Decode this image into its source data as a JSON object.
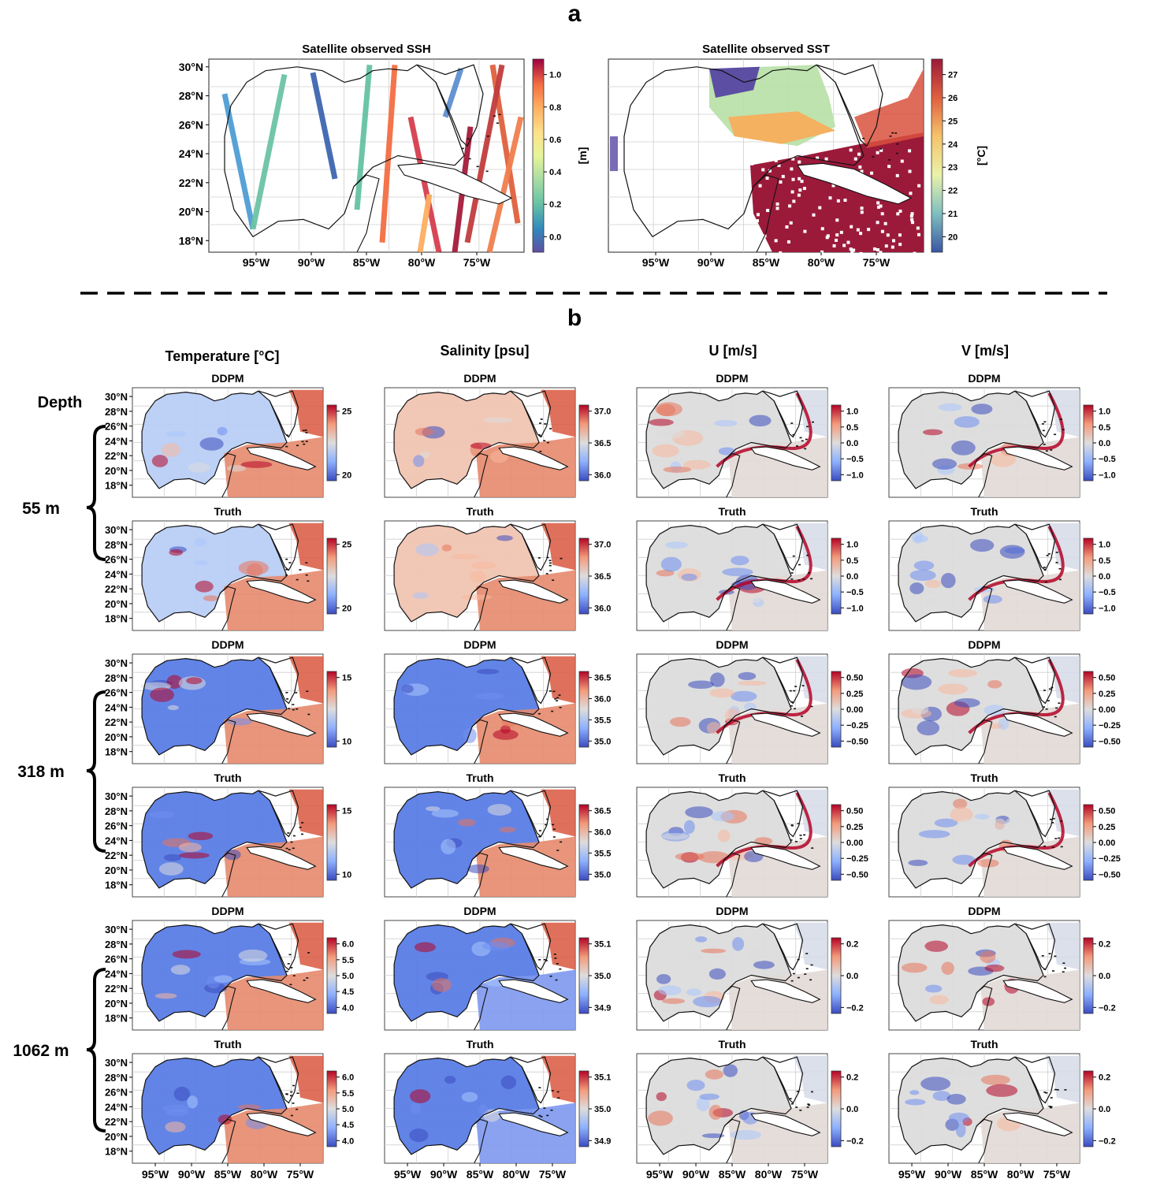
{
  "figure": {
    "label_a": "a",
    "label_b": "b"
  },
  "colors": {
    "ocean_fill": "#d6dbe2",
    "coast": "#111111",
    "grid": "#cfcfcf",
    "coolwarm": [
      "#3b4cc0",
      "#8db0fe",
      "#dddddd",
      "#f49a7b",
      "#b40426"
    ],
    "spectral": [
      "#5e4fa2",
      "#3288bd",
      "#66c2a5",
      "#abdda4",
      "#e6f598",
      "#fee08b",
      "#fdae61",
      "#f46d43",
      "#d53e4f",
      "#9e0142"
    ]
  },
  "panel_a": {
    "xticks": [
      "95°W",
      "90°W",
      "85°W",
      "80°W",
      "75°W"
    ],
    "yticks": [
      "30°N",
      "28°N",
      "26°N",
      "24°N",
      "22°N",
      "20°N",
      "18°N"
    ],
    "ssh": {
      "title": "Satellite observed SSH",
      "colorbar_label": "[m]",
      "colorbar_ticks": [
        "1.0",
        "0.8",
        "0.6",
        "0.4",
        "0.2",
        "0.0"
      ]
    },
    "sst": {
      "title": "Satellite observed SST",
      "colorbar_label": "[°C]",
      "colorbar_ticks": [
        "27",
        "26",
        "25",
        "24",
        "23",
        "22",
        "21",
        "20"
      ]
    }
  },
  "panel_b": {
    "column_titles": [
      "Temperature [$^\\circ$C]",
      "Salinity [psu]",
      "U [m/s]",
      "V [m/s]"
    ],
    "row_header": "Depth",
    "row_titles": [
      "DDPM",
      "Truth"
    ],
    "depths": [
      "55 m",
      "318 m",
      "1062 m"
    ],
    "xticks": [
      "95°W",
      "90°W",
      "85°W",
      "80°W",
      "75°W"
    ],
    "yticks": [
      "30°N",
      "28°N",
      "26°N",
      "24°N",
      "22°N",
      "20°N",
      "18°N"
    ],
    "colorbars": [
      [
        [
          "25",
          "20"
        ],
        [
          "37.0",
          "36.5",
          "36.0"
        ],
        [
          "1.0",
          "0.5",
          "0.0",
          "−0.5",
          "−1.0"
        ],
        [
          "1.0",
          "0.5",
          "0.0",
          "−0.5",
          "−1.0"
        ]
      ],
      [
        [
          "15",
          "10"
        ],
        [
          "36.5",
          "36.0",
          "35.5",
          "35.0"
        ],
        [
          "0.50",
          "0.25",
          "0.00",
          "−0.25",
          "−0.50"
        ],
        [
          "0.50",
          "0.25",
          "0.00",
          "−0.25",
          "−0.50"
        ]
      ],
      [
        [
          "6.0",
          "5.5",
          "5.0",
          "4.5",
          "4.0"
        ],
        [
          "35.1",
          "35.0",
          "34.9"
        ],
        [
          "0.2",
          "0.0",
          "−0.2"
        ],
        [
          "0.2",
          "0.0",
          "−0.2"
        ]
      ]
    ]
  },
  "chart_data": [
    {
      "type": "heatmap",
      "title": "Satellite observed SSH",
      "colorbar_label": "[m]",
      "colorbar_range": [
        0.0,
        1.0
      ],
      "xlim": [
        "98°W",
        "73°W"
      ],
      "ylim": [
        "17°N",
        "30.5°N"
      ]
    },
    {
      "type": "heatmap",
      "title": "Satellite observed SST",
      "colorbar_label": "[°C]",
      "colorbar_range": [
        20,
        27
      ],
      "xlim": [
        "98°W",
        "73°W"
      ],
      "ylim": [
        "17°N",
        "30.5°N"
      ]
    }
  ]
}
